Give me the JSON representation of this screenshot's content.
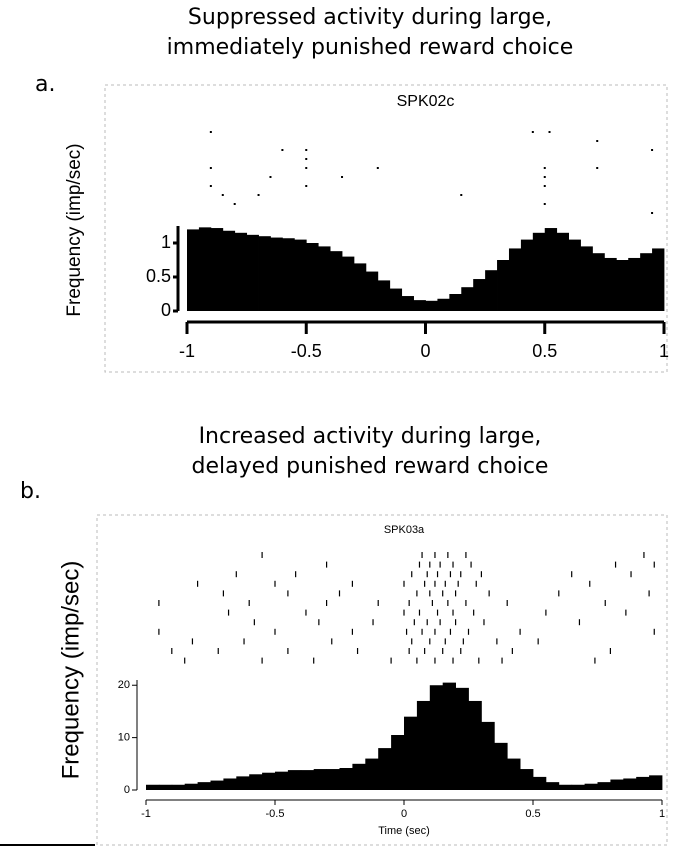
{
  "chart_data": [
    {
      "type": "histogram",
      "panel_label": "a.",
      "title": [
        "Suppressed activity during large,",
        "immediately punished reward choice"
      ],
      "unit_name": "SPK02c",
      "ylabel": "Frequency (imp/sec)",
      "color": "#000000",
      "bins": [
        -1,
        -0.95,
        -0.9,
        -0.85,
        -0.8,
        -0.75,
        -0.7,
        -0.65,
        -0.6,
        -0.55,
        -0.5,
        -0.45,
        -0.4,
        -0.35,
        -0.3,
        -0.25,
        -0.2,
        -0.15,
        -0.1,
        -0.05,
        0,
        0.05,
        0.1,
        0.15,
        0.2,
        0.25,
        0.3,
        0.35,
        0.4,
        0.45,
        0.5,
        0.55,
        0.6,
        0.65,
        0.7,
        0.75,
        0.8,
        0.85,
        0.9,
        0.95,
        1
      ],
      "values": [
        1.2,
        1.23,
        1.22,
        1.18,
        1.15,
        1.12,
        1.1,
        1.08,
        1.07,
        1.05,
        1.0,
        0.95,
        0.88,
        0.8,
        0.7,
        0.58,
        0.45,
        0.33,
        0.22,
        0.16,
        0.15,
        0.18,
        0.25,
        0.35,
        0.47,
        0.6,
        0.75,
        0.92,
        1.05,
        1.15,
        1.22,
        1.15,
        1.05,
        0.95,
        0.85,
        0.78,
        0.75,
        0.78,
        0.85,
        0.92
      ],
      "xlim": [
        -1,
        1
      ],
      "xticks": [
        -1,
        -0.5,
        0,
        0.5,
        1
      ],
      "ylim": [
        0,
        1.25
      ],
      "yticks": [
        0,
        0.5,
        1
      ],
      "raster": [
        [
          -0.9,
          0.45,
          0.52
        ],
        [
          0.72
        ],
        [
          -0.6,
          -0.5,
          0.95
        ],
        [
          -0.5
        ],
        [
          -0.9,
          -0.5,
          -0.2,
          0.5,
          0.72
        ],
        [
          -0.65,
          -0.35,
          0.5
        ],
        [
          -0.9,
          -0.5,
          0.5
        ],
        [
          -0.85,
          -0.7,
          0.15
        ],
        [
          -0.8,
          0.5
        ],
        [
          0.95
        ]
      ]
    },
    {
      "type": "histogram",
      "panel_label": "b.",
      "title": [
        "Increased activity during large,",
        "delayed punished reward choice"
      ],
      "unit_name": "SPK03a",
      "ylabel": "Frequency (imp/sec)",
      "xlabel": "Time (sec)",
      "color": "#000000",
      "bins": [
        -1,
        -0.95,
        -0.9,
        -0.85,
        -0.8,
        -0.75,
        -0.7,
        -0.65,
        -0.6,
        -0.55,
        -0.5,
        -0.45,
        -0.4,
        -0.35,
        -0.3,
        -0.25,
        -0.2,
        -0.15,
        -0.1,
        -0.05,
        0,
        0.05,
        0.1,
        0.15,
        0.2,
        0.25,
        0.3,
        0.35,
        0.4,
        0.45,
        0.5,
        0.55,
        0.6,
        0.65,
        0.7,
        0.75,
        0.8,
        0.85,
        0.9,
        0.95,
        1
      ],
      "values": [
        1,
        1,
        1,
        1.2,
        1.5,
        1.8,
        2.2,
        2.6,
        3,
        3.3,
        3.5,
        3.8,
        3.8,
        4,
        4,
        4.2,
        5,
        6,
        8,
        10.5,
        14,
        17,
        20,
        20.5,
        19.5,
        17,
        13,
        9,
        6,
        4,
        2.5,
        1.5,
        1,
        1,
        1.2,
        1.5,
        2,
        2.2,
        2.5,
        2.8
      ],
      "xlim": [
        -1,
        1
      ],
      "xticks": [
        -1,
        -0.5,
        0,
        0.5,
        1
      ],
      "ylim": [
        0,
        21
      ],
      "yticks": [
        0,
        10,
        20
      ],
      "raster": [
        [
          -0.55,
          0.07,
          0.12,
          0.17,
          0.24,
          0.93
        ],
        [
          -0.3,
          0.06,
          0.1,
          0.14,
          0.19,
          0.26,
          0.82,
          0.97
        ],
        [
          -0.65,
          -0.42,
          0.03,
          0.09,
          0.13,
          0.18,
          0.22,
          0.3,
          0.65,
          0.88
        ],
        [
          -0.8,
          -0.5,
          -0.2,
          0.0,
          0.08,
          0.12,
          0.16,
          0.21,
          0.28,
          0.72
        ],
        [
          -0.7,
          -0.45,
          -0.25,
          0.05,
          0.1,
          0.15,
          0.2,
          0.33,
          0.6,
          0.95
        ],
        [
          -0.95,
          -0.6,
          -0.3,
          -0.1,
          0.02,
          0.11,
          0.17,
          0.24,
          0.4,
          0.78
        ],
        [
          -0.68,
          -0.38,
          0.0,
          0.06,
          0.13,
          0.19,
          0.27,
          0.55,
          0.86
        ],
        [
          -0.58,
          -0.33,
          -0.12,
          0.04,
          0.09,
          0.14,
          0.2,
          0.31,
          0.68
        ],
        [
          -0.95,
          -0.5,
          -0.2,
          0.01,
          0.07,
          0.12,
          0.18,
          0.25,
          0.45,
          0.97
        ],
        [
          -0.82,
          -0.62,
          -0.28,
          0.03,
          0.1,
          0.16,
          0.23,
          0.36,
          0.52
        ],
        [
          -0.9,
          -0.72,
          -0.45,
          -0.18,
          0.02,
          0.08,
          0.15,
          0.22,
          0.42,
          0.8
        ],
        [
          -0.85,
          -0.55,
          -0.35,
          -0.05,
          0.05,
          0.12,
          0.19,
          0.29,
          0.38,
          0.74
        ]
      ]
    }
  ]
}
